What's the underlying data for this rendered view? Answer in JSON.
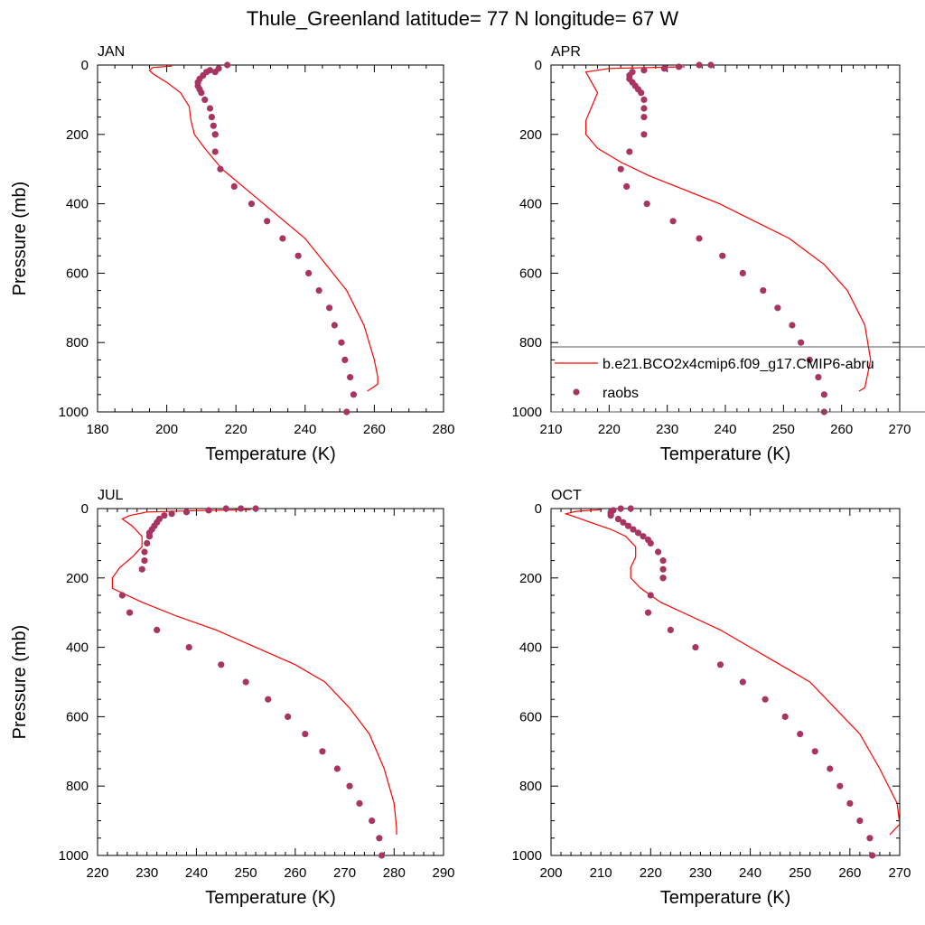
{
  "title": "Thule_Greenland  latitude= 77 N longitude= 67 W",
  "colors": {
    "model": "#ff0000",
    "obs": "#a83461"
  },
  "chart_data": [
    {
      "type": "line",
      "panel": "JAN",
      "xlabel": "Temperature (K)",
      "ylabel": "Pressure (mb)",
      "xlim": [
        180,
        280
      ],
      "ylim": [
        1000,
        0
      ],
      "xticks": [
        "180",
        "200",
        "220",
        "240",
        "260",
        "280"
      ],
      "yticks": [
        "0",
        "200",
        "400",
        "600",
        "800",
        "1000"
      ],
      "series": [
        {
          "name": "b.e21.BCO2x4cmip6.f09_g17.CMIP6-abru",
          "style": "line",
          "x": [
            201.5,
            196,
            195,
            196,
            200,
            204,
            206.5,
            207,
            208,
            211,
            216,
            222,
            228,
            234,
            240,
            246,
            252,
            257,
            260,
            261,
            261,
            258
          ],
          "y": [
            3,
            7,
            15,
            25,
            50,
            80,
            120,
            160,
            200,
            240,
            300,
            350,
            400,
            450,
            500,
            575,
            650,
            750,
            850,
            900,
            920,
            940
          ]
        },
        {
          "name": "raobs",
          "style": "points",
          "x": [
            217.5,
            215,
            214,
            212.5,
            211.5,
            210.5,
            209.5,
            209,
            209,
            209.5,
            210,
            211,
            212.5,
            213,
            213.5,
            214,
            214,
            214,
            215.5,
            219.5,
            224.5,
            229,
            233.5,
            238,
            241,
            244,
            247,
            248.5,
            250.5,
            251.5,
            253,
            254,
            252
          ],
          "y": [
            0,
            10,
            20,
            15,
            20,
            30,
            40,
            50,
            60,
            70,
            80,
            100,
            125,
            150,
            175,
            200,
            200,
            250,
            300,
            350,
            400,
            450,
            500,
            550,
            600,
            650,
            700,
            750,
            800,
            850,
            900,
            950,
            1000
          ]
        }
      ]
    },
    {
      "type": "line",
      "panel": "APR",
      "xlabel": "Temperature (K)",
      "ylabel": "",
      "xlim": [
        210,
        270
      ],
      "ylim": [
        1000,
        0
      ],
      "xticks": [
        "210",
        "220",
        "230",
        "240",
        "250",
        "260",
        "270"
      ],
      "yticks": [
        "0",
        "200",
        "400",
        "600",
        "800",
        "1000"
      ],
      "series": [
        {
          "name": "b.e21.BCO2x4cmip6.f09_g17.CMIP6-abru",
          "style": "line",
          "x": [
            233,
            220,
            216,
            217,
            218,
            217,
            216,
            216,
            218,
            222,
            227,
            233,
            239,
            245,
            251,
            257,
            261,
            264,
            265,
            264,
            263
          ],
          "y": [
            5,
            10,
            20,
            50,
            80,
            120,
            160,
            200,
            240,
            280,
            320,
            360,
            400,
            450,
            500,
            575,
            650,
            750,
            850,
            930,
            940
          ]
        },
        {
          "name": "raobs",
          "style": "points",
          "x": [
            237.5,
            235.5,
            232,
            229.5,
            226,
            224,
            223.5,
            223.5,
            224,
            224.5,
            225,
            225.5,
            226,
            226,
            226,
            226,
            223.5,
            222,
            223,
            226.5,
            231,
            235.5,
            239.5,
            243,
            246.5,
            249,
            251.5,
            253,
            254.5,
            256,
            257,
            257
          ],
          "y": [
            0,
            0,
            5,
            10,
            15,
            20,
            30,
            40,
            50,
            60,
            70,
            80,
            100,
            125,
            150,
            200,
            250,
            300,
            350,
            400,
            450,
            500,
            550,
            600,
            650,
            700,
            750,
            800,
            850,
            900,
            950,
            1000
          ]
        }
      ]
    },
    {
      "type": "line",
      "panel": "JUL",
      "xlabel": "Temperature (K)",
      "ylabel": "Pressure (mb)",
      "xlim": [
        220,
        290
      ],
      "ylim": [
        1000,
        0
      ],
      "xticks": [
        "220",
        "230",
        "240",
        "250",
        "260",
        "270",
        "280",
        "290"
      ],
      "yticks": [
        "0",
        "200",
        "400",
        "600",
        "800",
        "1000"
      ],
      "series": [
        {
          "name": "b.e21.BCO2x4cmip6.f09_g17.CMIP6-abru",
          "style": "line",
          "x": [
            251,
            240,
            230,
            226.5,
            225,
            227,
            229,
            229,
            227,
            224.5,
            223,
            223,
            229,
            236,
            244,
            252,
            260,
            266,
            271,
            275,
            278,
            280,
            280.5,
            280.5
          ],
          "y": [
            3,
            6,
            10,
            20,
            30,
            50,
            80,
            110,
            140,
            170,
            200,
            230,
            270,
            310,
            350,
            400,
            450,
            500,
            575,
            650,
            750,
            850,
            920,
            940
          ]
        },
        {
          "name": "raobs",
          "style": "points",
          "x": [
            252,
            249,
            246,
            242.5,
            238,
            235,
            233.5,
            232.5,
            232,
            231.5,
            231,
            230.5,
            230.5,
            230,
            229.5,
            229.5,
            229,
            225,
            226.5,
            232,
            238.5,
            245,
            250,
            254.5,
            258.5,
            262,
            265.5,
            268.5,
            271,
            273,
            275.5,
            277,
            277.5
          ],
          "y": [
            0,
            0,
            0,
            5,
            10,
            15,
            20,
            30,
            40,
            50,
            60,
            70,
            80,
            100,
            125,
            150,
            175,
            250,
            300,
            350,
            400,
            450,
            500,
            550,
            600,
            650,
            700,
            750,
            800,
            850,
            900,
            950,
            1000
          ]
        }
      ]
    },
    {
      "type": "line",
      "panel": "OCT",
      "xlabel": "Temperature (K)",
      "ylabel": "",
      "xlim": [
        200,
        270
      ],
      "ylim": [
        1000,
        0
      ],
      "xticks": [
        "200",
        "210",
        "220",
        "230",
        "240",
        "250",
        "260",
        "270"
      ],
      "yticks": [
        "0",
        "200",
        "400",
        "600",
        "800",
        "1000"
      ],
      "series": [
        {
          "name": "b.e21.BCO2x4cmip6.f09_g17.CMIP6-abru",
          "style": "line",
          "x": [
            210,
            205,
            203,
            205,
            208,
            212,
            215,
            217,
            217,
            216,
            216,
            218,
            222,
            228,
            234,
            240,
            246,
            252,
            257,
            262,
            266,
            269.5,
            270,
            268
          ],
          "y": [
            3,
            8,
            15,
            25,
            40,
            60,
            80,
            110,
            140,
            170,
            200,
            230,
            270,
            310,
            350,
            400,
            450,
            500,
            575,
            650,
            750,
            850,
            910,
            940
          ]
        },
        {
          "name": "raobs",
          "style": "points",
          "x": [
            216,
            214,
            212.5,
            212,
            212,
            212,
            213.5,
            214.5,
            215.5,
            216.5,
            217.5,
            218.5,
            219.5,
            220,
            221.5,
            222.5,
            222.5,
            222.5,
            222.5,
            220,
            219.5,
            224,
            229,
            234,
            238.5,
            243,
            247,
            250,
            253,
            256,
            258,
            260,
            262,
            264,
            264.5
          ],
          "y": [
            0,
            0,
            5,
            10,
            15,
            20,
            30,
            40,
            50,
            60,
            70,
            80,
            90,
            100,
            125,
            150,
            175,
            200,
            200,
            250,
            300,
            350,
            400,
            450,
            500,
            550,
            600,
            650,
            700,
            750,
            800,
            850,
            900,
            950,
            1000
          ]
        }
      ]
    }
  ]
}
